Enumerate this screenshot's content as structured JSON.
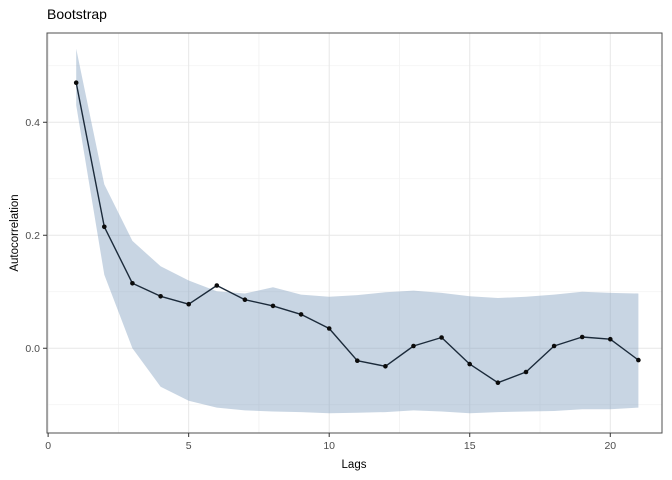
{
  "title": "Bootstrap",
  "chart_data": {
    "type": "line",
    "title": "Bootstrap",
    "xlabel": "Lags",
    "ylabel": "Autocorrelation",
    "x": [
      1,
      2,
      3,
      4,
      5,
      6,
      7,
      8,
      9,
      10,
      11,
      12,
      13,
      14,
      15,
      16,
      17,
      18,
      19,
      20,
      21
    ],
    "series": [
      {
        "name": "autocorrelation",
        "values": [
          0.47,
          0.215,
          0.115,
          0.092,
          0.078,
          0.111,
          0.086,
          0.075,
          0.06,
          0.035,
          -0.022,
          -0.032,
          0.004,
          0.019,
          -0.028,
          -0.061,
          -0.042,
          0.004,
          0.02,
          0.016,
          -0.021
        ]
      }
    ],
    "ribbon": {
      "name": "bootstrap-confidence-band",
      "upper": [
        0.53,
        0.29,
        0.19,
        0.145,
        0.12,
        0.101,
        0.097,
        0.108,
        0.095,
        0.091,
        0.094,
        0.099,
        0.102,
        0.098,
        0.092,
        0.089,
        0.091,
        0.095,
        0.1,
        0.098,
        0.097
      ],
      "lower": [
        0.43,
        0.13,
        0.0,
        -0.068,
        -0.093,
        -0.105,
        -0.11,
        -0.112,
        -0.113,
        -0.115,
        -0.114,
        -0.113,
        -0.11,
        -0.112,
        -0.115,
        -0.113,
        -0.112,
        -0.111,
        -0.108,
        -0.108,
        -0.105
      ]
    },
    "x_tick_values": [
      0,
      5,
      10,
      15,
      20
    ],
    "x_tick_labels": [
      "0",
      "5",
      "10",
      "15",
      "20"
    ],
    "x_minor_tick_values": [
      2.5,
      7.5,
      12.5,
      17.5
    ],
    "y_tick_values": [
      0.0,
      0.2,
      0.4
    ],
    "y_tick_labels": [
      "0.0",
      "0.2",
      "0.4"
    ],
    "y_minor_tick_values": [
      -0.1,
      0.1,
      0.3,
      0.5
    ],
    "xlim": [
      -0.04,
      21.84
    ],
    "ylim": [
      -0.15,
      0.558
    ],
    "grid": true,
    "legend": false,
    "colors": {
      "ribbon_fill": "rgba(125,156,188,0.42)",
      "line": "#1b2a3a",
      "point": "#0b0b0b",
      "grid_major": "#e7e7e7",
      "grid_minor": "#f2f2f2",
      "panel_border": "#4f4f4f",
      "tick_mark": "#333333",
      "tick_label": "#4d4d4d",
      "background": "#ffffff"
    }
  }
}
